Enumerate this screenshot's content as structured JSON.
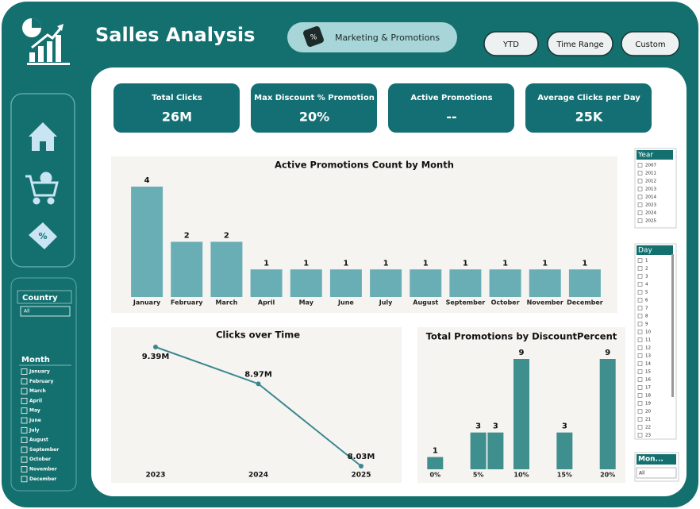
{
  "header": {
    "title": "Salles Analysis",
    "page_button": "Marketing & Promotions"
  },
  "buttons": [
    "YTD",
    "Time Range",
    "Custom"
  ],
  "kpis": [
    {
      "label": "Total Clicks",
      "value": "26M"
    },
    {
      "label": "Max Discount % Promotion",
      "value": "20%"
    },
    {
      "label": "Active Promotions",
      "value": "--"
    },
    {
      "label": "Average Clicks per Day",
      "value": "25K"
    }
  ],
  "slicers": {
    "country": {
      "title": "Country",
      "selected": "All"
    },
    "month": {
      "title": "Month",
      "items": [
        "January",
        "February",
        "March",
        "April",
        "May",
        "June",
        "July",
        "August",
        "September",
        "October",
        "November",
        "December"
      ]
    },
    "year": {
      "title": "Year",
      "items": [
        "2007",
        "2011",
        "2012",
        "2013",
        "2014",
        "2023",
        "2024",
        "2025"
      ]
    },
    "day": {
      "title": "Day",
      "items": [
        "1",
        "2",
        "3",
        "4",
        "5",
        "6",
        "7",
        "8",
        "9",
        "10",
        "11",
        "12",
        "13",
        "14",
        "15",
        "16",
        "17",
        "18",
        "19",
        "20",
        "21",
        "22",
        "23"
      ]
    },
    "mon": {
      "title": "Mon...",
      "selected": "All"
    }
  },
  "chart_data": [
    {
      "type": "bar",
      "title": "Active Promotions Count by Month",
      "categories": [
        "January",
        "February",
        "March",
        "April",
        "May",
        "June",
        "July",
        "August",
        "September",
        "October",
        "November",
        "December"
      ],
      "values": [
        4,
        2,
        2,
        1,
        1,
        1,
        1,
        1,
        1,
        1,
        1,
        1
      ],
      "color": "#6aaeb5"
    },
    {
      "type": "line",
      "title": "Clicks over Time",
      "categories": [
        "2023",
        "2024",
        "2025"
      ],
      "values": [
        9390000,
        8970000,
        8030000
      ],
      "value_labels": [
        "9.39M",
        "8.97M",
        "8.03M"
      ],
      "color": "#3b8790"
    },
    {
      "type": "bar",
      "title": "Total Promotions by DiscountPercent",
      "x": [
        0,
        5,
        7,
        10,
        15,
        20
      ],
      "values": [
        1,
        3,
        3,
        9,
        3,
        9
      ],
      "color": "#3f8f8f",
      "xlim": [
        -1.5,
        21.5
      ],
      "xticks": [
        {
          "value": 0,
          "label": "0%"
        },
        {
          "value": 5,
          "label": "5%"
        },
        {
          "value": 10,
          "label": "10%"
        },
        {
          "value": 15,
          "label": "15%"
        },
        {
          "value": 20,
          "label": "20%"
        }
      ]
    }
  ]
}
